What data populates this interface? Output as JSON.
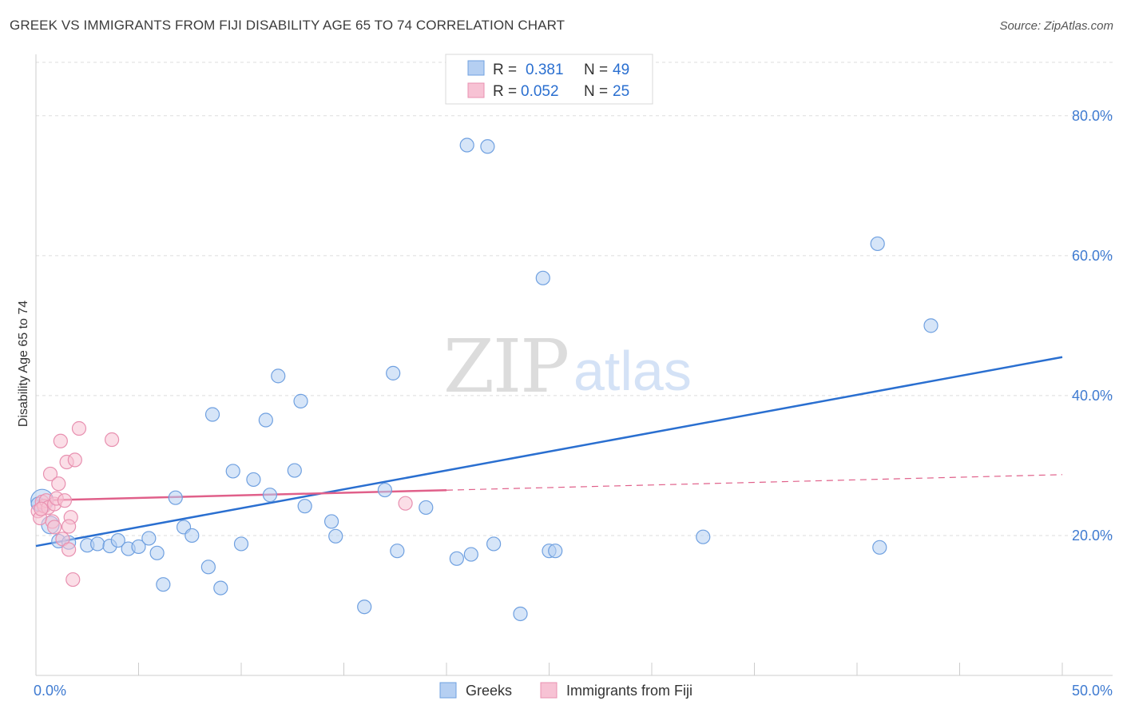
{
  "header": {
    "title": "GREEK VS IMMIGRANTS FROM FIJI DISABILITY AGE 65 TO 74 CORRELATION CHART",
    "source": "Source: ZipAtlas.com"
  },
  "watermark": {
    "zip": "ZIP",
    "atlas": "atlas"
  },
  "legend": {
    "r_label": "R =",
    "n_label": "N =",
    "entries": [
      {
        "r": "0.381",
        "n": "49"
      },
      {
        "r": "0.052",
        "n": "25"
      }
    ]
  },
  "chart_data": {
    "type": "scatter",
    "title": "GREEK VS IMMIGRANTS FROM FIJI DISABILITY AGE 65 TO 74 CORRELATION CHART",
    "xlabel": "",
    "ylabel": "Disability Age 65 to 74",
    "xlim": [
      0,
      50
    ],
    "ylim": [
      0,
      85
    ],
    "x_tick_labels": [
      "0.0%",
      "50.0%"
    ],
    "y_ticks": [
      20,
      40,
      60,
      80
    ],
    "y_tick_labels": [
      "20.0%",
      "40.0%",
      "60.0%",
      "80.0%"
    ],
    "grid": true,
    "legend_position": "top-center",
    "series": [
      {
        "name": "Greeks",
        "color": "#6fa0e0",
        "fill": "#b5cff2",
        "line_color": "#2a6fd0",
        "r": 0.381,
        "n": 49,
        "trend": {
          "x": [
            0,
            50
          ],
          "y": [
            18.5,
            45.5
          ],
          "dashed_from": null
        },
        "points": [
          [
            0.3,
            25.0
          ],
          [
            0.7,
            21.5
          ],
          [
            1.1,
            19.2
          ],
          [
            1.6,
            19.0
          ],
          [
            2.5,
            18.6
          ],
          [
            3.0,
            18.8
          ],
          [
            3.6,
            18.5
          ],
          [
            4.0,
            19.3
          ],
          [
            4.5,
            18.1
          ],
          [
            5.0,
            18.4
          ],
          [
            5.5,
            19.6
          ],
          [
            5.9,
            17.5
          ],
          [
            6.2,
            13.0
          ],
          [
            6.8,
            25.4
          ],
          [
            7.2,
            21.2
          ],
          [
            7.6,
            20.0
          ],
          [
            8.4,
            15.5
          ],
          [
            8.6,
            37.3
          ],
          [
            9.0,
            12.5
          ],
          [
            9.6,
            29.2
          ],
          [
            10.0,
            18.8
          ],
          [
            10.6,
            28.0
          ],
          [
            11.2,
            36.5
          ],
          [
            11.4,
            25.8
          ],
          [
            11.8,
            42.8
          ],
          [
            12.6,
            29.3
          ],
          [
            12.9,
            39.2
          ],
          [
            13.1,
            24.2
          ],
          [
            14.4,
            22.0
          ],
          [
            14.6,
            19.9
          ],
          [
            16.0,
            9.8
          ],
          [
            17.0,
            26.5
          ],
          [
            17.4,
            43.2
          ],
          [
            17.6,
            17.8
          ],
          [
            19.0,
            24.0
          ],
          [
            20.5,
            16.7
          ],
          [
            21.0,
            75.8
          ],
          [
            21.2,
            17.3
          ],
          [
            22.0,
            75.6
          ],
          [
            22.3,
            18.8
          ],
          [
            23.6,
            8.8
          ],
          [
            24.7,
            56.8
          ],
          [
            25.0,
            17.8
          ],
          [
            25.3,
            17.8
          ],
          [
            32.5,
            19.8
          ],
          [
            41.0,
            61.7
          ],
          [
            41.1,
            18.3
          ],
          [
            43.6,
            50.0
          ],
          [
            0.1,
            24.5
          ]
        ]
      },
      {
        "name": "Immigrants from Fiji",
        "color": "#e890b0",
        "fill": "#f7c2d4",
        "line_color": "#e0608a",
        "r": 0.052,
        "n": 25,
        "trend": {
          "x": [
            0,
            50
          ],
          "y": [
            25.0,
            28.7
          ],
          "dashed_from": 20
        },
        "points": [
          [
            0.1,
            23.5
          ],
          [
            0.2,
            22.5
          ],
          [
            0.3,
            24.8
          ],
          [
            0.4,
            24.2
          ],
          [
            0.5,
            25.0
          ],
          [
            0.6,
            24.0
          ],
          [
            0.7,
            28.8
          ],
          [
            0.8,
            22.0
          ],
          [
            0.9,
            24.5
          ],
          [
            1.0,
            25.3
          ],
          [
            1.1,
            27.4
          ],
          [
            1.2,
            33.5
          ],
          [
            1.3,
            19.5
          ],
          [
            1.4,
            25.0
          ],
          [
            1.5,
            30.5
          ],
          [
            1.6,
            18.0
          ],
          [
            1.7,
            22.6
          ],
          [
            1.8,
            13.7
          ],
          [
            1.9,
            30.8
          ],
          [
            2.1,
            35.3
          ],
          [
            3.7,
            33.7
          ],
          [
            18.0,
            24.6
          ],
          [
            0.9,
            21.2
          ],
          [
            0.25,
            23.8
          ],
          [
            1.6,
            21.3
          ]
        ]
      }
    ]
  }
}
